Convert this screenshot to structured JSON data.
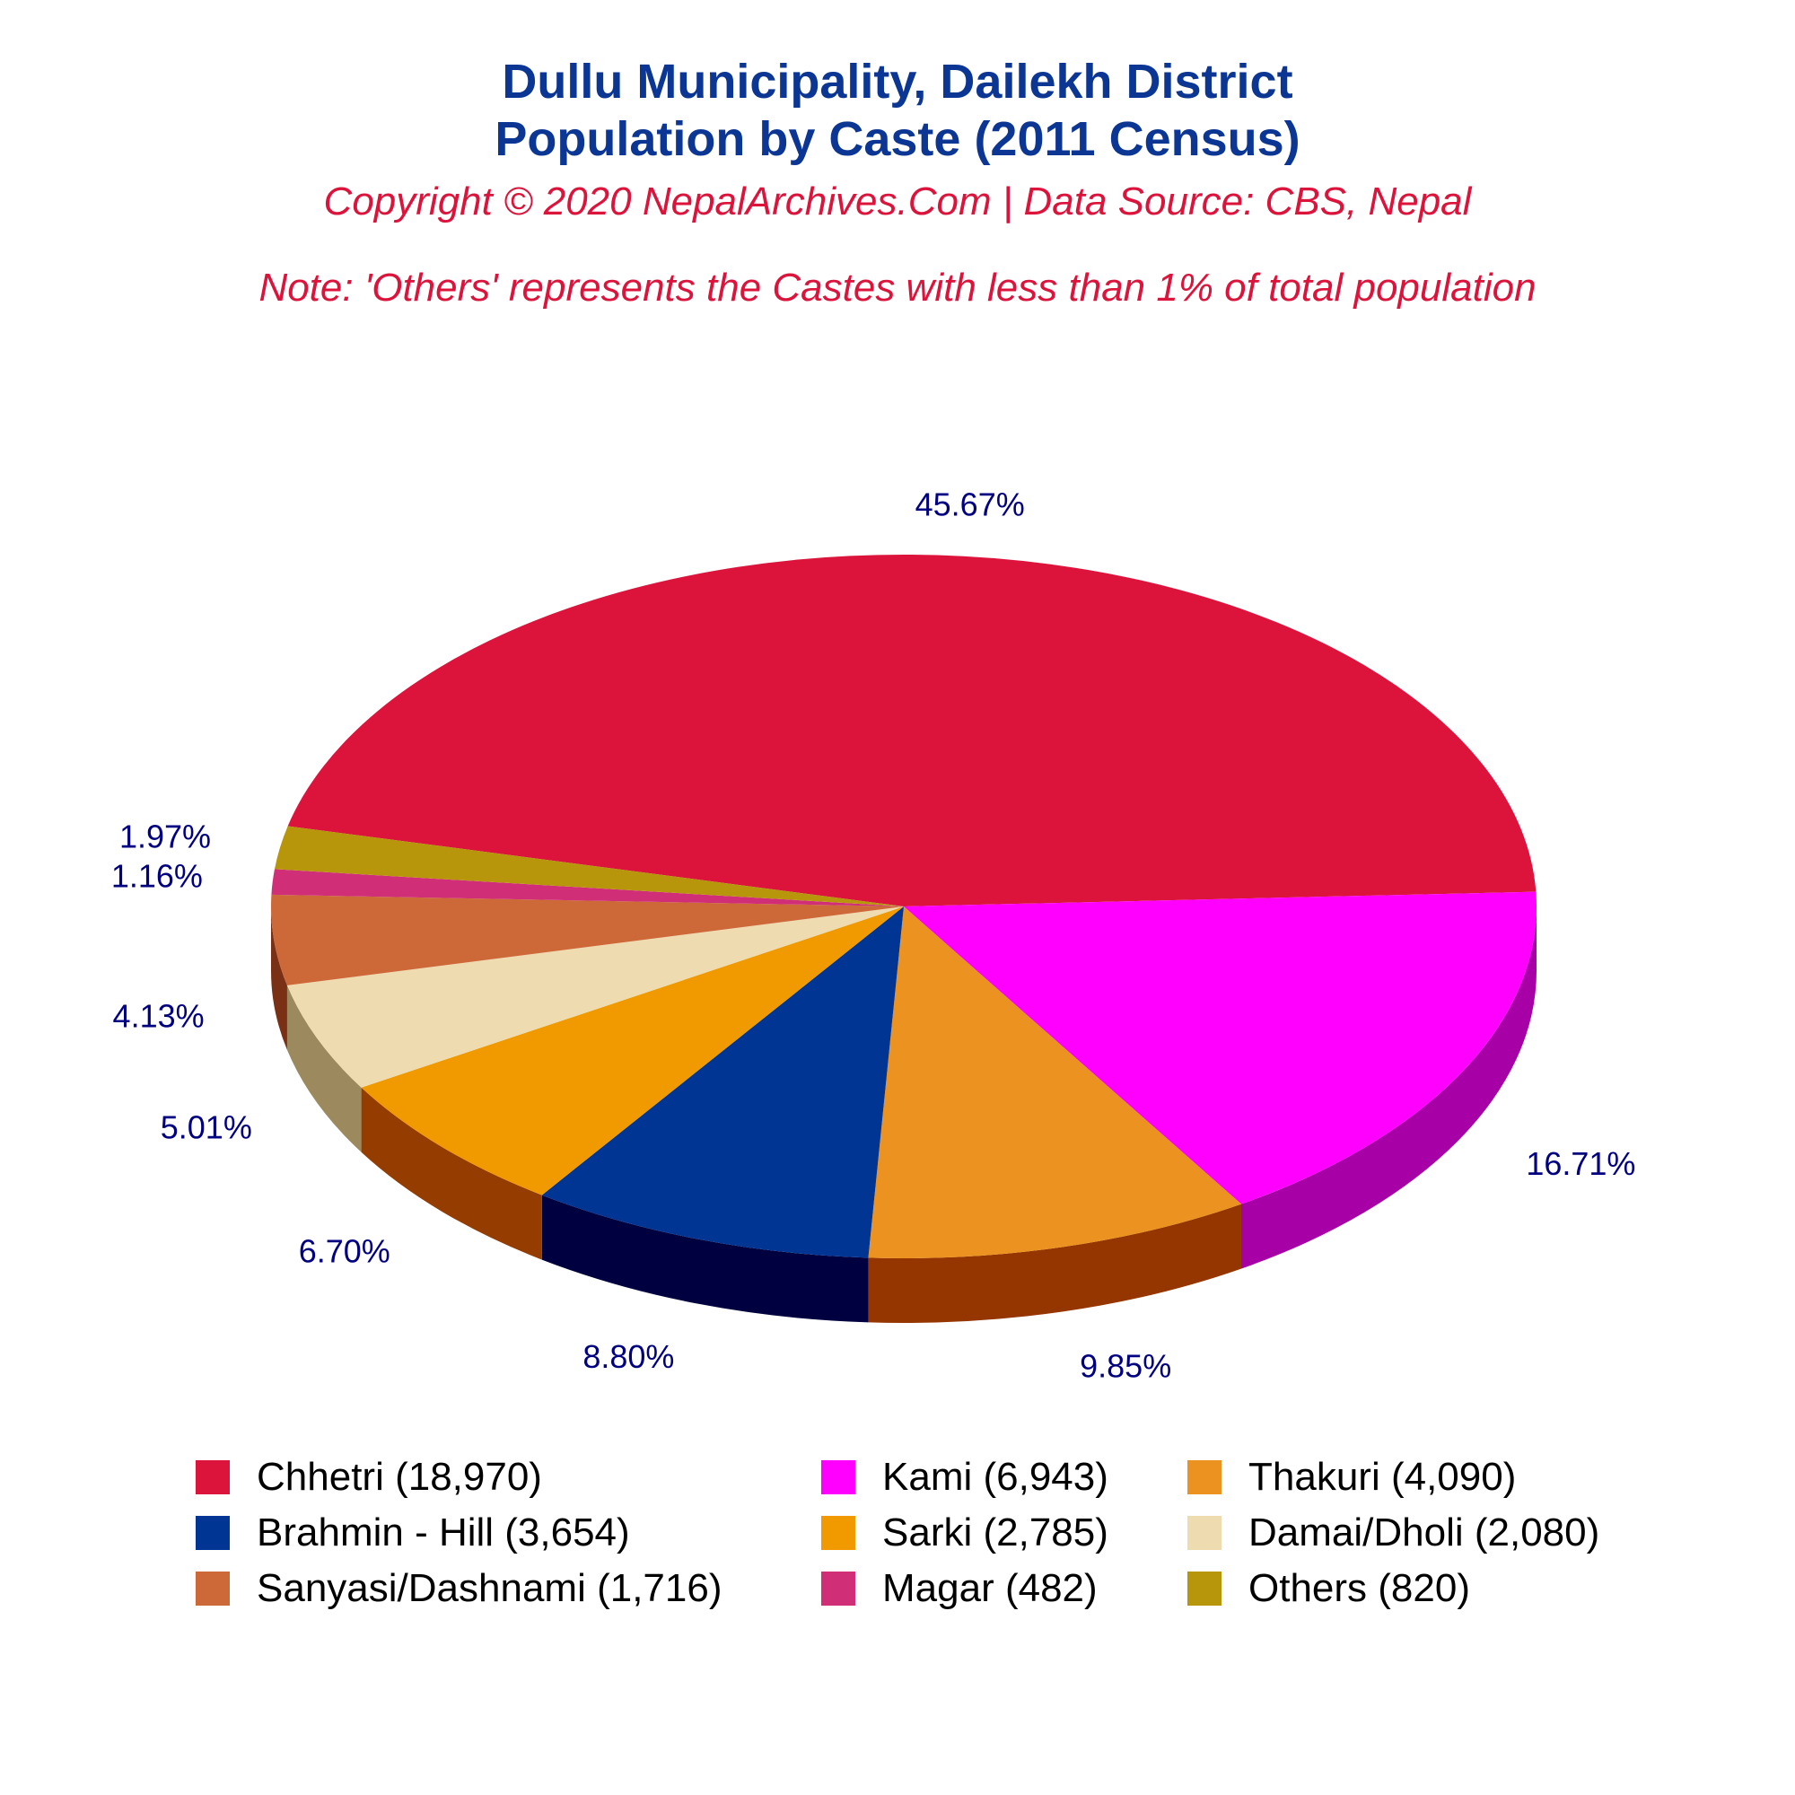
{
  "title": {
    "line1": "Dullu Municipality, Dailekh District",
    "line2": "Population by Caste (2011 Census)"
  },
  "copyright": "Copyright © 2020 NepalArchives.Com | Data Source: CBS, Nepal",
  "note": "Note: 'Others' represents the Castes with less than 1% of total population",
  "chart_data": {
    "type": "pie",
    "style": "3d",
    "label_color": "#000080",
    "slices": [
      {
        "name": "Chhetri",
        "value": 18970,
        "percent_label": "45.67%",
        "legend": "Chhetri (18,970)",
        "color": "#dc143c",
        "side_color": "#8b0000"
      },
      {
        "name": "Kami",
        "value": 6943,
        "percent_label": "16.71%",
        "legend": "Kami (6,943)",
        "color": "#ff00ff",
        "side_color": "#a600a6"
      },
      {
        "name": "Thakuri",
        "value": 4090,
        "percent_label": "9.85%",
        "legend": "Thakuri (4,090)",
        "color": "#ec9220",
        "side_color": "#953500"
      },
      {
        "name": "Brahmin - Hill",
        "value": 3654,
        "percent_label": "8.80%",
        "legend": "Brahmin - Hill (3,654)",
        "color": "#003594",
        "side_color": "#000040"
      },
      {
        "name": "Sarki",
        "value": 2785,
        "percent_label": "6.70%",
        "legend": "Sarki (2,785)",
        "color": "#f09a00",
        "side_color": "#953c00"
      },
      {
        "name": "Damai/Dholi",
        "value": 2080,
        "percent_label": "5.01%",
        "legend": "Damai/Dholi (2,080)",
        "color": "#eedbb0",
        "side_color": "#9c8a5e"
      },
      {
        "name": "Sanyasi/Dashnami",
        "value": 1716,
        "percent_label": "4.13%",
        "legend": "Sanyasi/Dashnami (1,716)",
        "color": "#cd6839",
        "side_color": "#7a3015"
      },
      {
        "name": "Magar",
        "value": 482,
        "percent_label": "1.16%",
        "legend": "Magar (482)",
        "color": "#d02f78",
        "side_color": "#7a1040"
      },
      {
        "name": "Others",
        "value": 820,
        "percent_label": "1.97%",
        "legend": "Others (820)",
        "color": "#b8960b",
        "side_color": "#6b5500"
      }
    ]
  }
}
